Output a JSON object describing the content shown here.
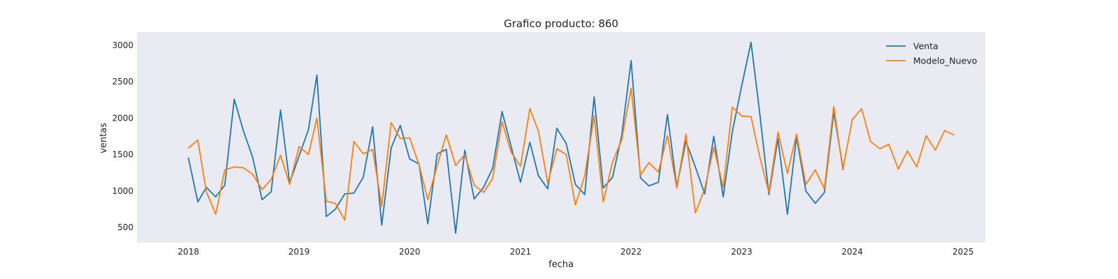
{
  "chart_data": {
    "type": "line",
    "title": "Grafico producto: 860",
    "xlabel": "fecha",
    "ylabel": "ventas",
    "xlim": [
      "2017-07-15",
      "2025-03-15"
    ],
    "ylim": [
      290,
      3180
    ],
    "x_ticks": [
      {
        "date": "2018-01-01",
        "label": "2018"
      },
      {
        "date": "2019-01-01",
        "label": "2019"
      },
      {
        "date": "2020-01-01",
        "label": "2020"
      },
      {
        "date": "2021-01-01",
        "label": "2021"
      },
      {
        "date": "2022-01-01",
        "label": "2022"
      },
      {
        "date": "2023-01-01",
        "label": "2023"
      },
      {
        "date": "2024-01-01",
        "label": "2024"
      },
      {
        "date": "2025-01-01",
        "label": "2025"
      }
    ],
    "y_ticks": [
      500,
      1000,
      1500,
      2000,
      2500,
      3000
    ],
    "grid": false,
    "background": "#eaeaf2",
    "legend": {
      "placement": "top-right"
    },
    "series": [
      {
        "name": "Venta",
        "color": "#1f77b4",
        "start": "2018-01",
        "values": [
          1450,
          850,
          1050,
          920,
          1080,
          2260,
          1830,
          1460,
          880,
          990,
          2110,
          1110,
          1480,
          1840,
          2590,
          650,
          750,
          960,
          970,
          1190,
          1880,
          530,
          1590,
          1900,
          1440,
          1370,
          550,
          1510,
          1570,
          420,
          1560,
          890,
          1050,
          1310,
          2090,
          1610,
          1120,
          1670,
          1210,
          1030,
          1860,
          1650,
          1090,
          950,
          2290,
          1040,
          1190,
          1760,
          2790,
          1180,
          1070,
          1120,
          2050,
          1060,
          1680,
          1330,
          960,
          1750,
          920,
          1810,
          2440,
          3040,
          2090,
          950,
          1720,
          680,
          1740,
          1000,
          830,
          980,
          2080,
          1330
        ]
      },
      {
        "name": "Modelo_Nuevo",
        "color": "#ff7f0e",
        "start": "2018-01",
        "values": [
          1590,
          1700,
          990,
          680,
          1290,
          1330,
          1320,
          1230,
          1020,
          1160,
          1490,
          1090,
          1610,
          1500,
          2000,
          860,
          830,
          600,
          1680,
          1510,
          1570,
          790,
          1940,
          1720,
          1730,
          1360,
          880,
          1350,
          1770,
          1350,
          1500,
          1080,
          980,
          1170,
          1950,
          1530,
          1340,
          2130,
          1820,
          1110,
          1580,
          1500,
          810,
          1210,
          2030,
          850,
          1400,
          1700,
          2410,
          1220,
          1390,
          1260,
          1760,
          1040,
          1780,
          700,
          1030,
          1600,
          1050,
          2150,
          2030,
          2020,
          1480,
          980,
          1810,
          1240,
          1780,
          1090,
          1290,
          1030,
          2160,
          1290,
          1980,
          2130,
          1680,
          1580,
          1640,
          1300,
          1550,
          1330,
          1760,
          1560,
          1830,
          1770
        ]
      }
    ]
  }
}
